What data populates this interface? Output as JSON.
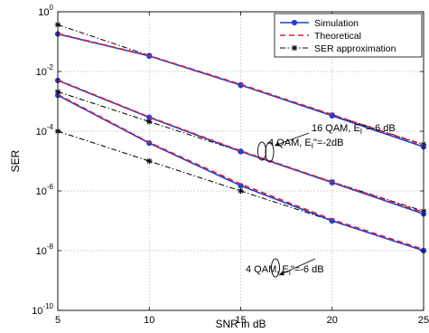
{
  "chart_data": {
    "type": "line",
    "xlabel": "SNR in dB",
    "ylabel": "SER",
    "x": [
      5,
      10,
      15,
      20,
      25
    ],
    "xlim": [
      5,
      25
    ],
    "ylim": [
      1e-10,
      1
    ],
    "yscale": "log",
    "x_ticks": [
      "5",
      "10",
      "15",
      "20",
      "25"
    ],
    "y_ticks": [
      {
        "base": "10",
        "exp": "0"
      },
      {
        "base": "10",
        "exp": "-2"
      },
      {
        "base": "10",
        "exp": "-4"
      },
      {
        "base": "10",
        "exp": "-6"
      },
      {
        "base": "10",
        "exp": "-8"
      },
      {
        "base": "10",
        "exp": "-10"
      }
    ],
    "grid": "dotted",
    "legend_position": "top-right",
    "legend": [
      {
        "label": "Simulation",
        "color": "#1f3fd6",
        "style": "solid-circle"
      },
      {
        "label": "Theoretical",
        "color": "#e0202a",
        "style": "dashed"
      },
      {
        "label": "SER approximation",
        "color": "#000000",
        "style": "dashdot-star"
      }
    ],
    "groups": [
      {
        "label": "16 QAM, E",
        "label_sub": "I",
        "label_rest": "\"=-6 dB",
        "simulation": [
          0.18,
          0.033,
          0.0035,
          0.00033,
          3e-05
        ],
        "theoretical": [
          0.185,
          0.034,
          0.0037,
          0.00036,
          3.4e-05
        ],
        "approximation": [
          0.37,
          0.034,
          0.0035,
          0.00035,
          3.6e-05
        ]
      },
      {
        "label": "4 QAM, E",
        "label_sub": "I",
        "label_rest": "\"=-2dB",
        "simulation": [
          0.005,
          0.00029,
          2.1e-05,
          1.9e-06,
          1.7e-07
        ],
        "theoretical": [
          0.0052,
          0.0003,
          2.2e-05,
          2e-06,
          1.9e-07
        ],
        "approximation": [
          0.0021,
          0.00021,
          2.1e-05,
          2e-06,
          2.1e-07
        ]
      },
      {
        "label": "4 QAM, E",
        "label_sub": "I",
        "label_rest": "\"=-6 dB",
        "simulation": [
          0.0016,
          4e-05,
          1.5e-06,
          1e-07,
          1e-08
        ],
        "theoretical": [
          0.0017,
          4.2e-05,
          1.7e-06,
          1.1e-07,
          1.1e-08
        ],
        "approximation": [
          0.0001,
          1e-05,
          1e-06,
          1e-07,
          1e-08
        ]
      }
    ]
  }
}
